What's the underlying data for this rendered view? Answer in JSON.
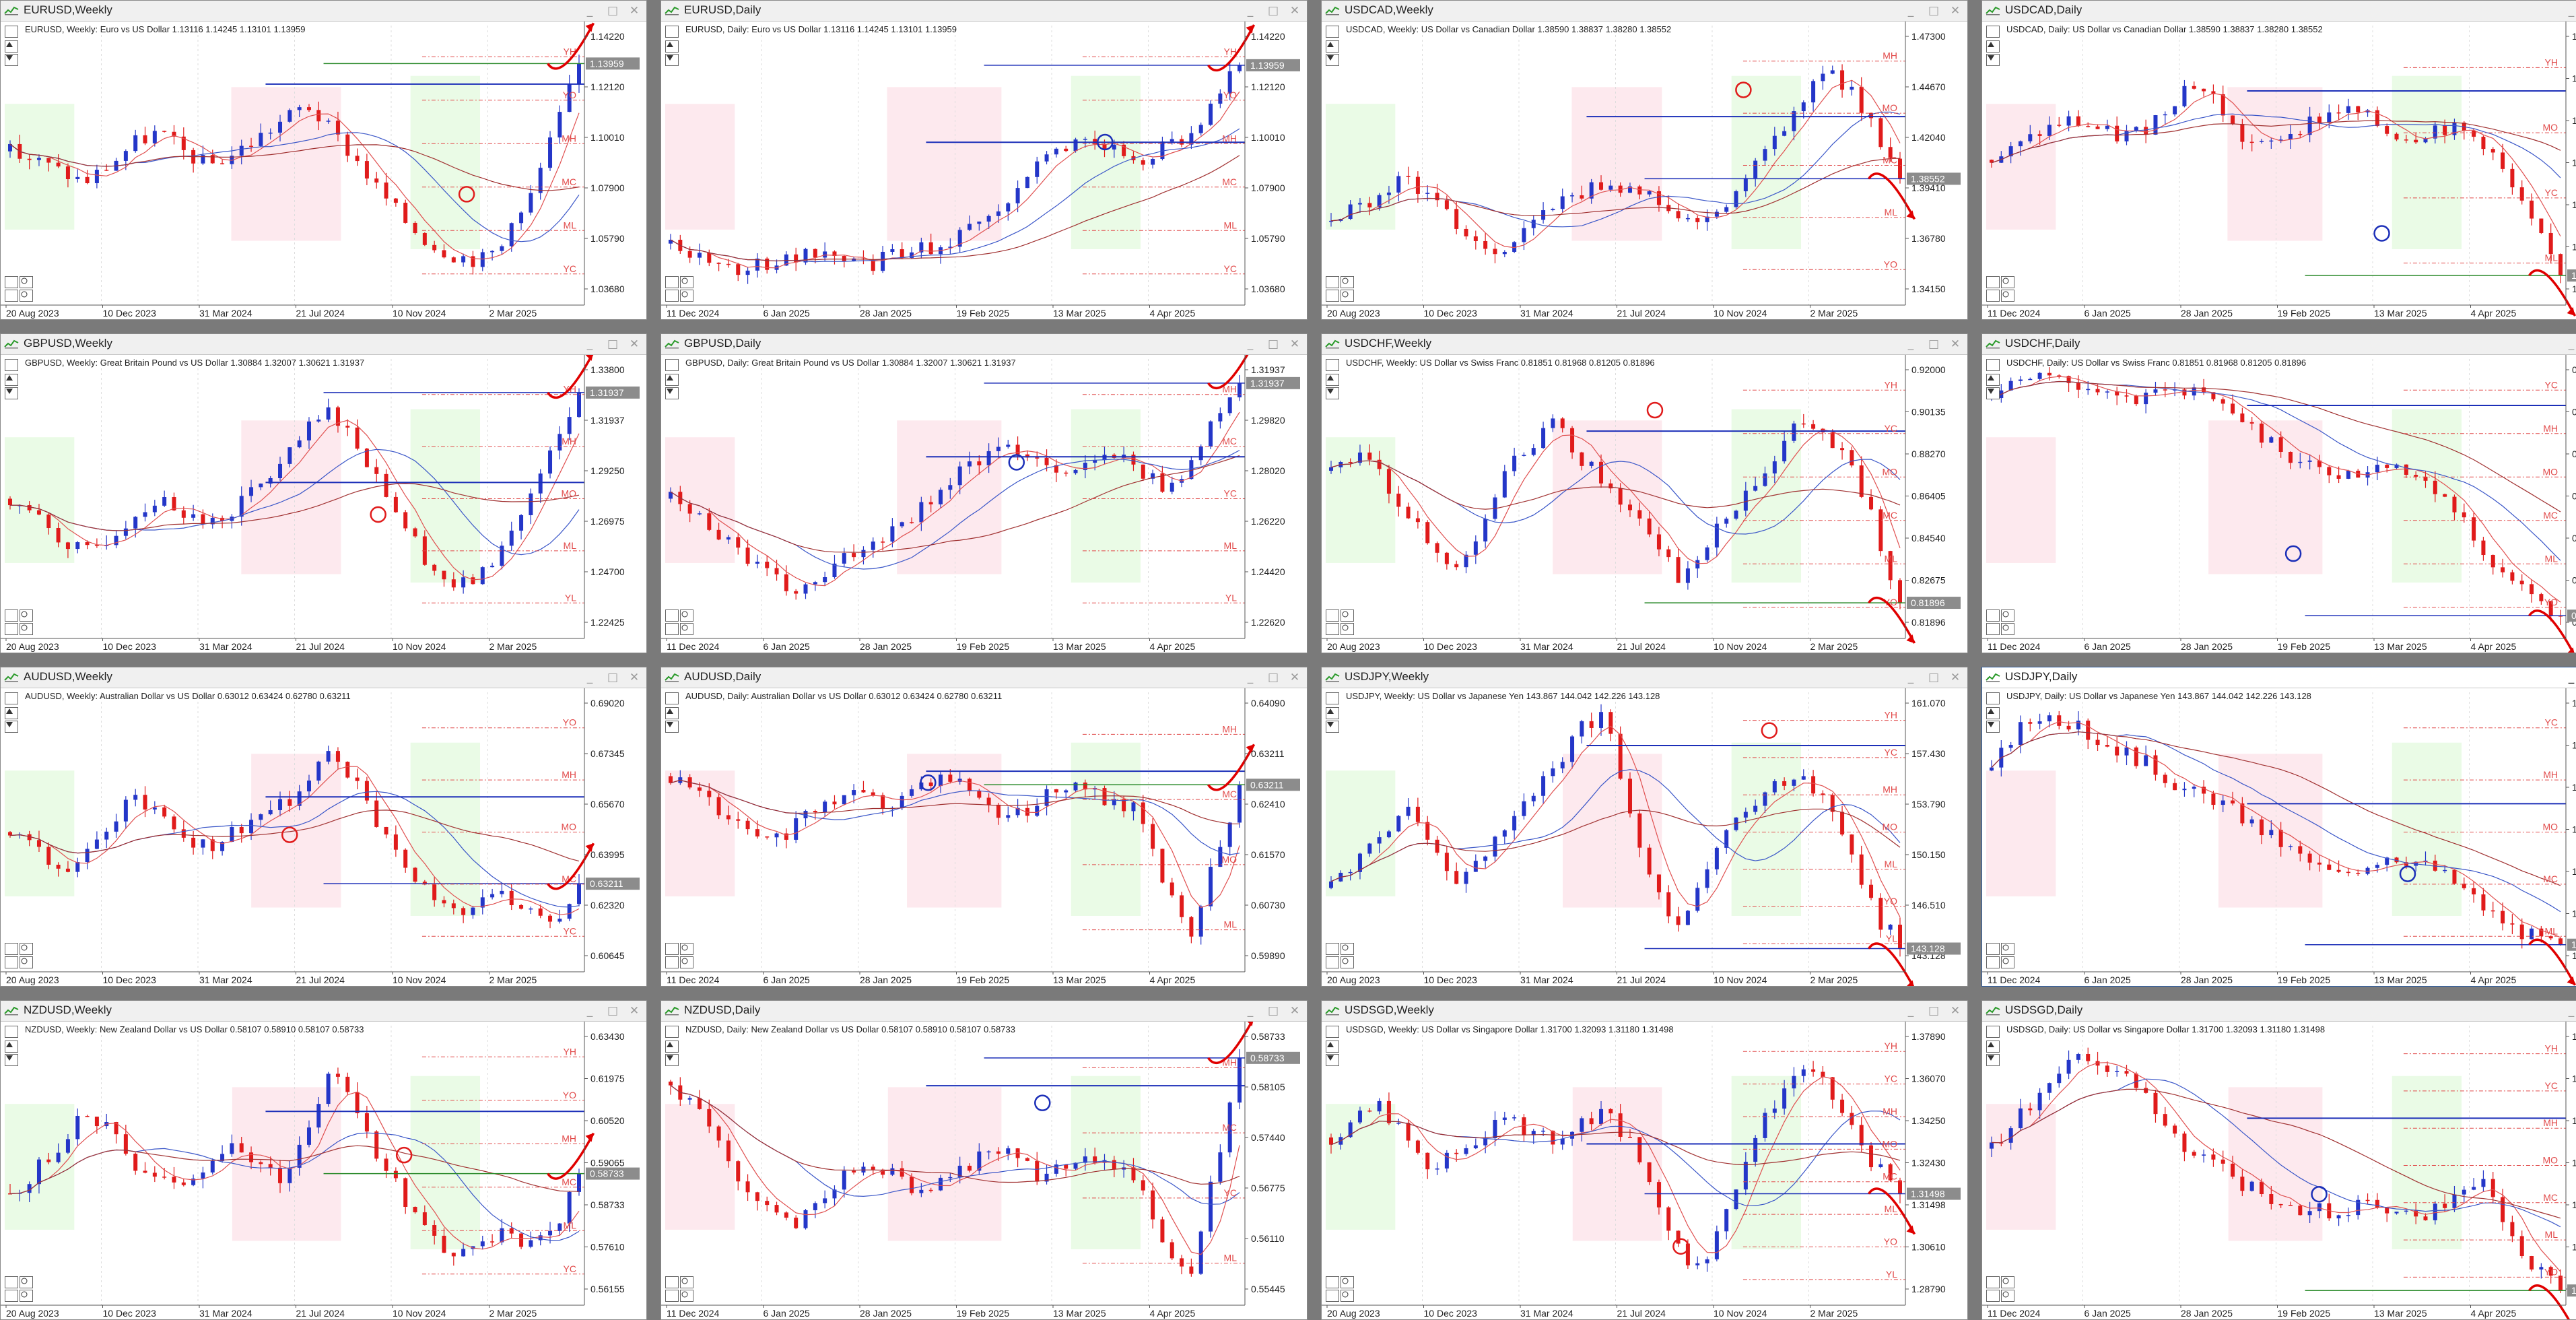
{
  "panels": [
    {
      "title": "EURUSD,Weekly",
      "info": "EURUSD, Weekly:  Euro vs US Dollar  1.13116 1.14245 1.13101 1.13959",
      "price_ticks": [
        "1.14220",
        "1.12120",
        "1.10010",
        "1.07900",
        "1.05790",
        "1.03680"
      ],
      "current_price": "1.13959",
      "date_ticks": [
        "20 Aug 2023",
        "10 Dec 2023",
        "31 Mar 2024",
        "21 Jul 2024",
        "10 Nov 2024",
        "2 Mar 2025"
      ],
      "level_tags": [
        "YH",
        "YO",
        "MH",
        "MC",
        "ML",
        "YC"
      ],
      "trend": [
        0.55,
        0.52,
        0.48,
        0.44,
        0.5,
        0.58,
        0.62,
        0.55,
        0.5,
        0.54,
        0.6,
        0.66,
        0.72,
        0.62,
        0.52,
        0.4,
        0.3,
        0.22,
        0.18,
        0.16,
        0.22,
        0.38,
        0.62,
        0.86
      ]
    },
    {
      "title": "EURUSD,Daily",
      "info": "EURUSD, Daily:  Euro vs US Dollar  1.13116 1.14245 1.13101 1.13959",
      "price_ticks": [
        "1.14220",
        "1.12120",
        "1.10010",
        "1.07900",
        "1.05790",
        "1.03680"
      ],
      "current_price": "1.13959",
      "date_ticks": [
        "11 Dec 2024",
        "6 Jan 2025",
        "28 Jan 2025",
        "19 Feb 2025",
        "13 Mar 2025",
        "4 Apr 2025"
      ],
      "level_tags": [
        "YH",
        "YO",
        "MH",
        "MC",
        "ML",
        "YC"
      ],
      "trend": [
        0.22,
        0.18,
        0.14,
        0.12,
        0.16,
        0.18,
        0.2,
        0.16,
        0.14,
        0.18,
        0.2,
        0.22,
        0.26,
        0.3,
        0.42,
        0.52,
        0.56,
        0.58,
        0.55,
        0.52,
        0.56,
        0.6,
        0.72,
        0.88
      ]
    },
    {
      "title": "USDCAD,Weekly",
      "info": "USDCAD, Weekly:  US Dollar vs Canadian Dollar  1.38590 1.38837 1.38280 1.38552",
      "price_ticks": [
        "1.47300",
        "1.44670",
        "1.42040",
        "1.39410",
        "1.36780",
        "1.34150"
      ],
      "current_price": "1.38552",
      "date_ticks": [
        "20 Aug 2023",
        "10 Dec 2023",
        "31 Mar 2024",
        "21 Jul 2024",
        "10 Nov 2024",
        "2 Mar 2025"
      ],
      "level_tags": [
        "MH",
        "MO",
        "MC",
        "ML",
        "YO"
      ],
      "trend": [
        0.3,
        0.34,
        0.4,
        0.46,
        0.38,
        0.3,
        0.22,
        0.2,
        0.28,
        0.36,
        0.4,
        0.44,
        0.42,
        0.38,
        0.32,
        0.28,
        0.36,
        0.48,
        0.6,
        0.72,
        0.84,
        0.78,
        0.62,
        0.44
      ]
    },
    {
      "title": "USDCAD,Daily",
      "info": "USDCAD, Daily:  US Dollar vs Canadian Dollar  1.38590 1.38837 1.38280 1.38552",
      "price_ticks": [
        "1.47550",
        "1.45080",
        "1.44410",
        "1.42840",
        "1.41270",
        "1.39700",
        "1.38552"
      ],
      "current_price": "1.38552",
      "date_ticks": [
        "11 Dec 2024",
        "6 Jan 2025",
        "28 Jan 2025",
        "19 Feb 2025",
        "13 Mar 2025",
        "4 Apr 2025"
      ],
      "level_tags": [
        "YH",
        "MO",
        "YC",
        "ML"
      ],
      "trend": [
        0.52,
        0.56,
        0.62,
        0.66,
        0.64,
        0.6,
        0.62,
        0.7,
        0.8,
        0.74,
        0.6,
        0.56,
        0.62,
        0.66,
        0.7,
        0.68,
        0.62,
        0.6,
        0.64,
        0.62,
        0.58,
        0.42,
        0.26,
        0.12
      ]
    },
    {
      "title": "GBPUSD,Weekly",
      "info": "GBPUSD, Weekly:  Great Britain Pound vs US Dollar  1.30884 1.32007 1.30621 1.31937",
      "price_ticks": [
        "1.33800",
        "1.31937",
        "1.29250",
        "1.26975",
        "1.24700",
        "1.22425"
      ],
      "current_price": "1.31937",
      "date_ticks": [
        "20 Aug 2023",
        "10 Dec 2023",
        "31 Mar 2024",
        "21 Jul 2024",
        "10 Nov 2024",
        "2 Mar 2025"
      ],
      "level_tags": [
        "YH",
        "MH",
        "MO",
        "ML",
        "YL"
      ],
      "trend": [
        0.5,
        0.44,
        0.36,
        0.3,
        0.36,
        0.44,
        0.5,
        0.46,
        0.4,
        0.46,
        0.54,
        0.62,
        0.74,
        0.82,
        0.7,
        0.56,
        0.4,
        0.26,
        0.18,
        0.22,
        0.34,
        0.5,
        0.68,
        0.86
      ]
    },
    {
      "title": "GBPUSD,Daily",
      "info": "GBPUSD, Daily:  Great Britain Pound vs US Dollar  1.30884 1.32007 1.30621 1.31937",
      "price_ticks": [
        "1.31937",
        "1.29820",
        "1.28020",
        "1.26220",
        "1.24420",
        "1.22620"
      ],
      "current_price": "1.31937",
      "date_ticks": [
        "11 Dec 2024",
        "6 Jan 2025",
        "28 Jan 2025",
        "19 Feb 2025",
        "13 Mar 2025",
        "4 Apr 2025"
      ],
      "level_tags": [
        "MH",
        "MC",
        "YC",
        "ML",
        "YL"
      ],
      "trend": [
        0.5,
        0.44,
        0.38,
        0.3,
        0.22,
        0.16,
        0.2,
        0.28,
        0.34,
        0.4,
        0.46,
        0.54,
        0.62,
        0.66,
        0.68,
        0.64,
        0.6,
        0.62,
        0.66,
        0.6,
        0.54,
        0.62,
        0.78,
        0.92
      ]
    },
    {
      "title": "USDCHF,Weekly",
      "info": "USDCHF, Weekly:  US Dollar vs Swiss Franc  0.81851 0.81968 0.81205 0.81896",
      "price_ticks": [
        "0.92000",
        "0.90135",
        "0.88270",
        "0.86405",
        "0.84540",
        "0.82675",
        "0.81896"
      ],
      "current_price": "0.81896",
      "date_ticks": [
        "20 Aug 2023",
        "10 Dec 2023",
        "31 Mar 2024",
        "21 Jul 2024",
        "10 Nov 2024",
        "2 Mar 2025"
      ],
      "level_tags": [
        "YH",
        "YC",
        "MO",
        "MC",
        "ML",
        "YO"
      ],
      "trend": [
        0.6,
        0.66,
        0.58,
        0.46,
        0.32,
        0.24,
        0.4,
        0.58,
        0.7,
        0.76,
        0.66,
        0.56,
        0.48,
        0.34,
        0.22,
        0.3,
        0.44,
        0.56,
        0.66,
        0.78,
        0.72,
        0.62,
        0.4,
        0.1
      ]
    },
    {
      "title": "USDCHF,Daily",
      "info": "USDCHF, Daily:  US Dollar vs Swiss Franc  0.81851 0.81968 0.81205 0.81896",
      "price_ticks": [
        "0.91595",
        "0.89795",
        "0.88000",
        "0.86205",
        "0.84410",
        "0.82615",
        "0.81896"
      ],
      "current_price": "0.81896",
      "date_ticks": [
        "11 Dec 2024",
        "6 Jan 2025",
        "28 Jan 2025",
        "19 Feb 2025",
        "13 Mar 2025",
        "4 Apr 2025"
      ],
      "level_tags": [
        "YC",
        "MH",
        "MO",
        "MC",
        "ML",
        "YO"
      ],
      "trend": [
        0.86,
        0.9,
        0.94,
        0.92,
        0.9,
        0.86,
        0.84,
        0.88,
        0.9,
        0.86,
        0.8,
        0.72,
        0.66,
        0.62,
        0.6,
        0.58,
        0.62,
        0.6,
        0.54,
        0.44,
        0.3,
        0.2,
        0.12,
        0.08
      ]
    },
    {
      "title": "AUDUSD,Weekly",
      "info": "AUDUSD, Weekly:  Australian Dollar vs US Dollar  0.63012 0.63424 0.62780 0.63211",
      "price_ticks": [
        "0.69020",
        "0.67345",
        "0.65670",
        "0.63995",
        "0.62320",
        "0.60645"
      ],
      "current_price": "0.63211",
      "date_ticks": [
        "20 Aug 2023",
        "10 Dec 2023",
        "31 Mar 2024",
        "21 Jul 2024",
        "10 Nov 2024",
        "2 Mar 2025"
      ],
      "level_tags": [
        "YO",
        "MH",
        "MO",
        "MC",
        "YC"
      ],
      "trend": [
        0.5,
        0.44,
        0.36,
        0.42,
        0.54,
        0.62,
        0.56,
        0.48,
        0.44,
        0.5,
        0.56,
        0.6,
        0.66,
        0.8,
        0.66,
        0.5,
        0.38,
        0.26,
        0.2,
        0.24,
        0.28,
        0.22,
        0.14,
        0.34
      ]
    },
    {
      "title": "AUDUSD,Daily",
      "info": "AUDUSD, Daily:  Australian Dollar vs US Dollar  0.63012 0.63424 0.62780 0.63211",
      "price_ticks": [
        "0.64090",
        "0.63211",
        "0.62410",
        "0.61570",
        "0.60730",
        "0.59890"
      ],
      "current_price": "0.63211",
      "date_ticks": [
        "11 Dec 2024",
        "6 Jan 2025",
        "28 Jan 2025",
        "19 Feb 2025",
        "13 Mar 2025",
        "4 Apr 2025"
      ],
      "level_tags": [
        "MH",
        "MC",
        "MO",
        "ML"
      ],
      "trend": [
        0.7,
        0.64,
        0.56,
        0.5,
        0.46,
        0.52,
        0.6,
        0.64,
        0.62,
        0.6,
        0.66,
        0.7,
        0.66,
        0.58,
        0.56,
        0.62,
        0.66,
        0.64,
        0.6,
        0.58,
        0.3,
        0.1,
        0.4,
        0.66
      ]
    },
    {
      "title": "USDJPY,Weekly",
      "info": "USDJPY, Weekly:  US Dollar vs Japanese Yen  143.867 144.042 142.226 143.128",
      "price_ticks": [
        "161.070",
        "157.430",
        "153.790",
        "150.150",
        "146.510",
        "143.128"
      ],
      "current_price": "143.128",
      "date_ticks": [
        "20 Aug 2023",
        "10 Dec 2023",
        "31 Mar 2024",
        "21 Jul 2024",
        "10 Nov 2024",
        "2 Mar 2025"
      ],
      "level_tags": [
        "YH",
        "YC",
        "MH",
        "MO",
        "ML",
        "YO",
        "YL"
      ],
      "trend": [
        0.3,
        0.38,
        0.5,
        0.58,
        0.46,
        0.34,
        0.4,
        0.52,
        0.62,
        0.72,
        0.86,
        0.94,
        0.62,
        0.3,
        0.14,
        0.36,
        0.52,
        0.6,
        0.68,
        0.72,
        0.6,
        0.42,
        0.2,
        0.1
      ]
    },
    {
      "title": "USDJPY,Daily",
      "info": "USDJPY, Daily:  US Dollar vs Japanese Yen  143.867 144.042 142.226 143.128",
      "price_ticks": [
        "158.210",
        "155.490",
        "152.770",
        "150.050",
        "147.330",
        "144.535",
        "143.128"
      ],
      "current_price": "143.128",
      "date_ticks": [
        "11 Dec 2024",
        "6 Jan 2025",
        "28 Jan 2025",
        "19 Feb 2025",
        "13 Mar 2025",
        "4 Apr 2025"
      ],
      "level_tags": [
        "YC",
        "MH",
        "MO",
        "MC",
        "ML"
      ],
      "trend": [
        0.72,
        0.86,
        0.92,
        0.9,
        0.84,
        0.8,
        0.76,
        0.7,
        0.64,
        0.62,
        0.56,
        0.5,
        0.44,
        0.38,
        0.34,
        0.38,
        0.42,
        0.4,
        0.36,
        0.3,
        0.22,
        0.16,
        0.12,
        0.08
      ]
    },
    {
      "title": "NZDUSD,Weekly",
      "info": "NZDUSD, Weekly:  New Zealand Dollar vs US Dollar  0.58107 0.58910 0.58107 0.58733",
      "price_ticks": [
        "0.63430",
        "0.61975",
        "0.60520",
        "0.59065",
        "0.58733",
        "0.57610",
        "0.56155"
      ],
      "current_price": "0.58733",
      "date_ticks": [
        "20 Aug 2023",
        "10 Dec 2023",
        "31 Mar 2024",
        "21 Jul 2024",
        "10 Nov 2024",
        "2 Mar 2025"
      ],
      "level_tags": [
        "YH",
        "YO",
        "MH",
        "MC",
        "ML",
        "YC"
      ],
      "trend": [
        0.4,
        0.48,
        0.58,
        0.7,
        0.62,
        0.5,
        0.46,
        0.4,
        0.5,
        0.58,
        0.52,
        0.46,
        0.62,
        0.86,
        0.68,
        0.52,
        0.36,
        0.24,
        0.18,
        0.2,
        0.26,
        0.22,
        0.24,
        0.48
      ]
    },
    {
      "title": "NZDUSD,Daily",
      "info": "NZDUSD, Daily:  New Zealand Dollar vs US Dollar  0.58107 0.58910 0.58107 0.58733",
      "price_ticks": [
        "0.58733",
        "0.58105",
        "0.57440",
        "0.56775",
        "0.56110",
        "0.55445"
      ],
      "current_price": "0.58733",
      "date_ticks": [
        "11 Dec 2024",
        "6 Jan 2025",
        "28 Jan 2025",
        "19 Feb 2025",
        "13 Mar 2025",
        "4 Apr 2025"
      ],
      "level_tags": [
        "MH",
        "MC",
        "YC",
        "ML"
      ],
      "trend": [
        0.8,
        0.7,
        0.56,
        0.42,
        0.34,
        0.28,
        0.36,
        0.46,
        0.52,
        0.46,
        0.4,
        0.44,
        0.5,
        0.56,
        0.52,
        0.46,
        0.5,
        0.54,
        0.5,
        0.46,
        0.2,
        0.08,
        0.48,
        0.86
      ]
    },
    {
      "title": "USDSGD,Weekly",
      "info": "USDSGD, Weekly:  US Dollar vs Singapore Dollar  1.31700 1.32093 1.31180 1.31498",
      "price_ticks": [
        "1.37890",
        "1.36070",
        "1.34250",
        "1.32430",
        "1.31498",
        "1.30610",
        "1.28790"
      ],
      "current_price": "1.31498",
      "date_ticks": [
        "20 Aug 2023",
        "10 Dec 2023",
        "31 Mar 2024",
        "21 Jul 2024",
        "10 Nov 2024",
        "2 Mar 2025"
      ],
      "level_tags": [
        "YH",
        "YC",
        "MH",
        "MO",
        "MC",
        "ML",
        "YO",
        "YL"
      ],
      "trend": [
        0.6,
        0.66,
        0.72,
        0.6,
        0.48,
        0.54,
        0.6,
        0.66,
        0.62,
        0.58,
        0.64,
        0.7,
        0.6,
        0.42,
        0.22,
        0.1,
        0.36,
        0.58,
        0.74,
        0.86,
        0.78,
        0.64,
        0.5,
        0.4
      ]
    },
    {
      "title": "USDSGD,Daily",
      "info": "USDSGD, Daily:  US Dollar vs Singapore Dollar  1.31700 1.32093 1.31180 1.31498",
      "price_ticks": [
        "1.37620",
        "1.36460",
        "1.35300",
        "1.34130",
        "1.32980",
        "1.31820",
        "1.31498"
      ],
      "current_price": "1.31498",
      "date_ticks": [
        "11 Dec 2024",
        "6 Jan 2025",
        "28 Jan 2025",
        "19 Feb 2025",
        "13 Mar 2025",
        "4 Apr 2025"
      ],
      "level_tags": [
        "YH",
        "YC",
        "MH",
        "MO",
        "MC",
        "ML",
        "YO"
      ],
      "trend": [
        0.56,
        0.66,
        0.76,
        0.86,
        0.9,
        0.84,
        0.76,
        0.64,
        0.56,
        0.5,
        0.44,
        0.4,
        0.36,
        0.34,
        0.32,
        0.36,
        0.34,
        0.3,
        0.34,
        0.4,
        0.46,
        0.24,
        0.14,
        0.08
      ]
    }
  ],
  "active_panel_index": 11,
  "controls": {
    "minimize": "_",
    "maximize": "□",
    "close": "✕"
  },
  "colors": {
    "bull": "#2436c8",
    "bear": "#e01b1b",
    "ma_fast": "#e05050",
    "ma_slow": "#3a56c8",
    "ma_long": "#a03030",
    "zone_green": "#eafbe6",
    "zone_red": "#fde9ee",
    "level_blue": "#1c2fb8",
    "level_red": "#e14a4a",
    "arrow": "#e00000",
    "price_tag_bg": "#8c8c8c"
  }
}
